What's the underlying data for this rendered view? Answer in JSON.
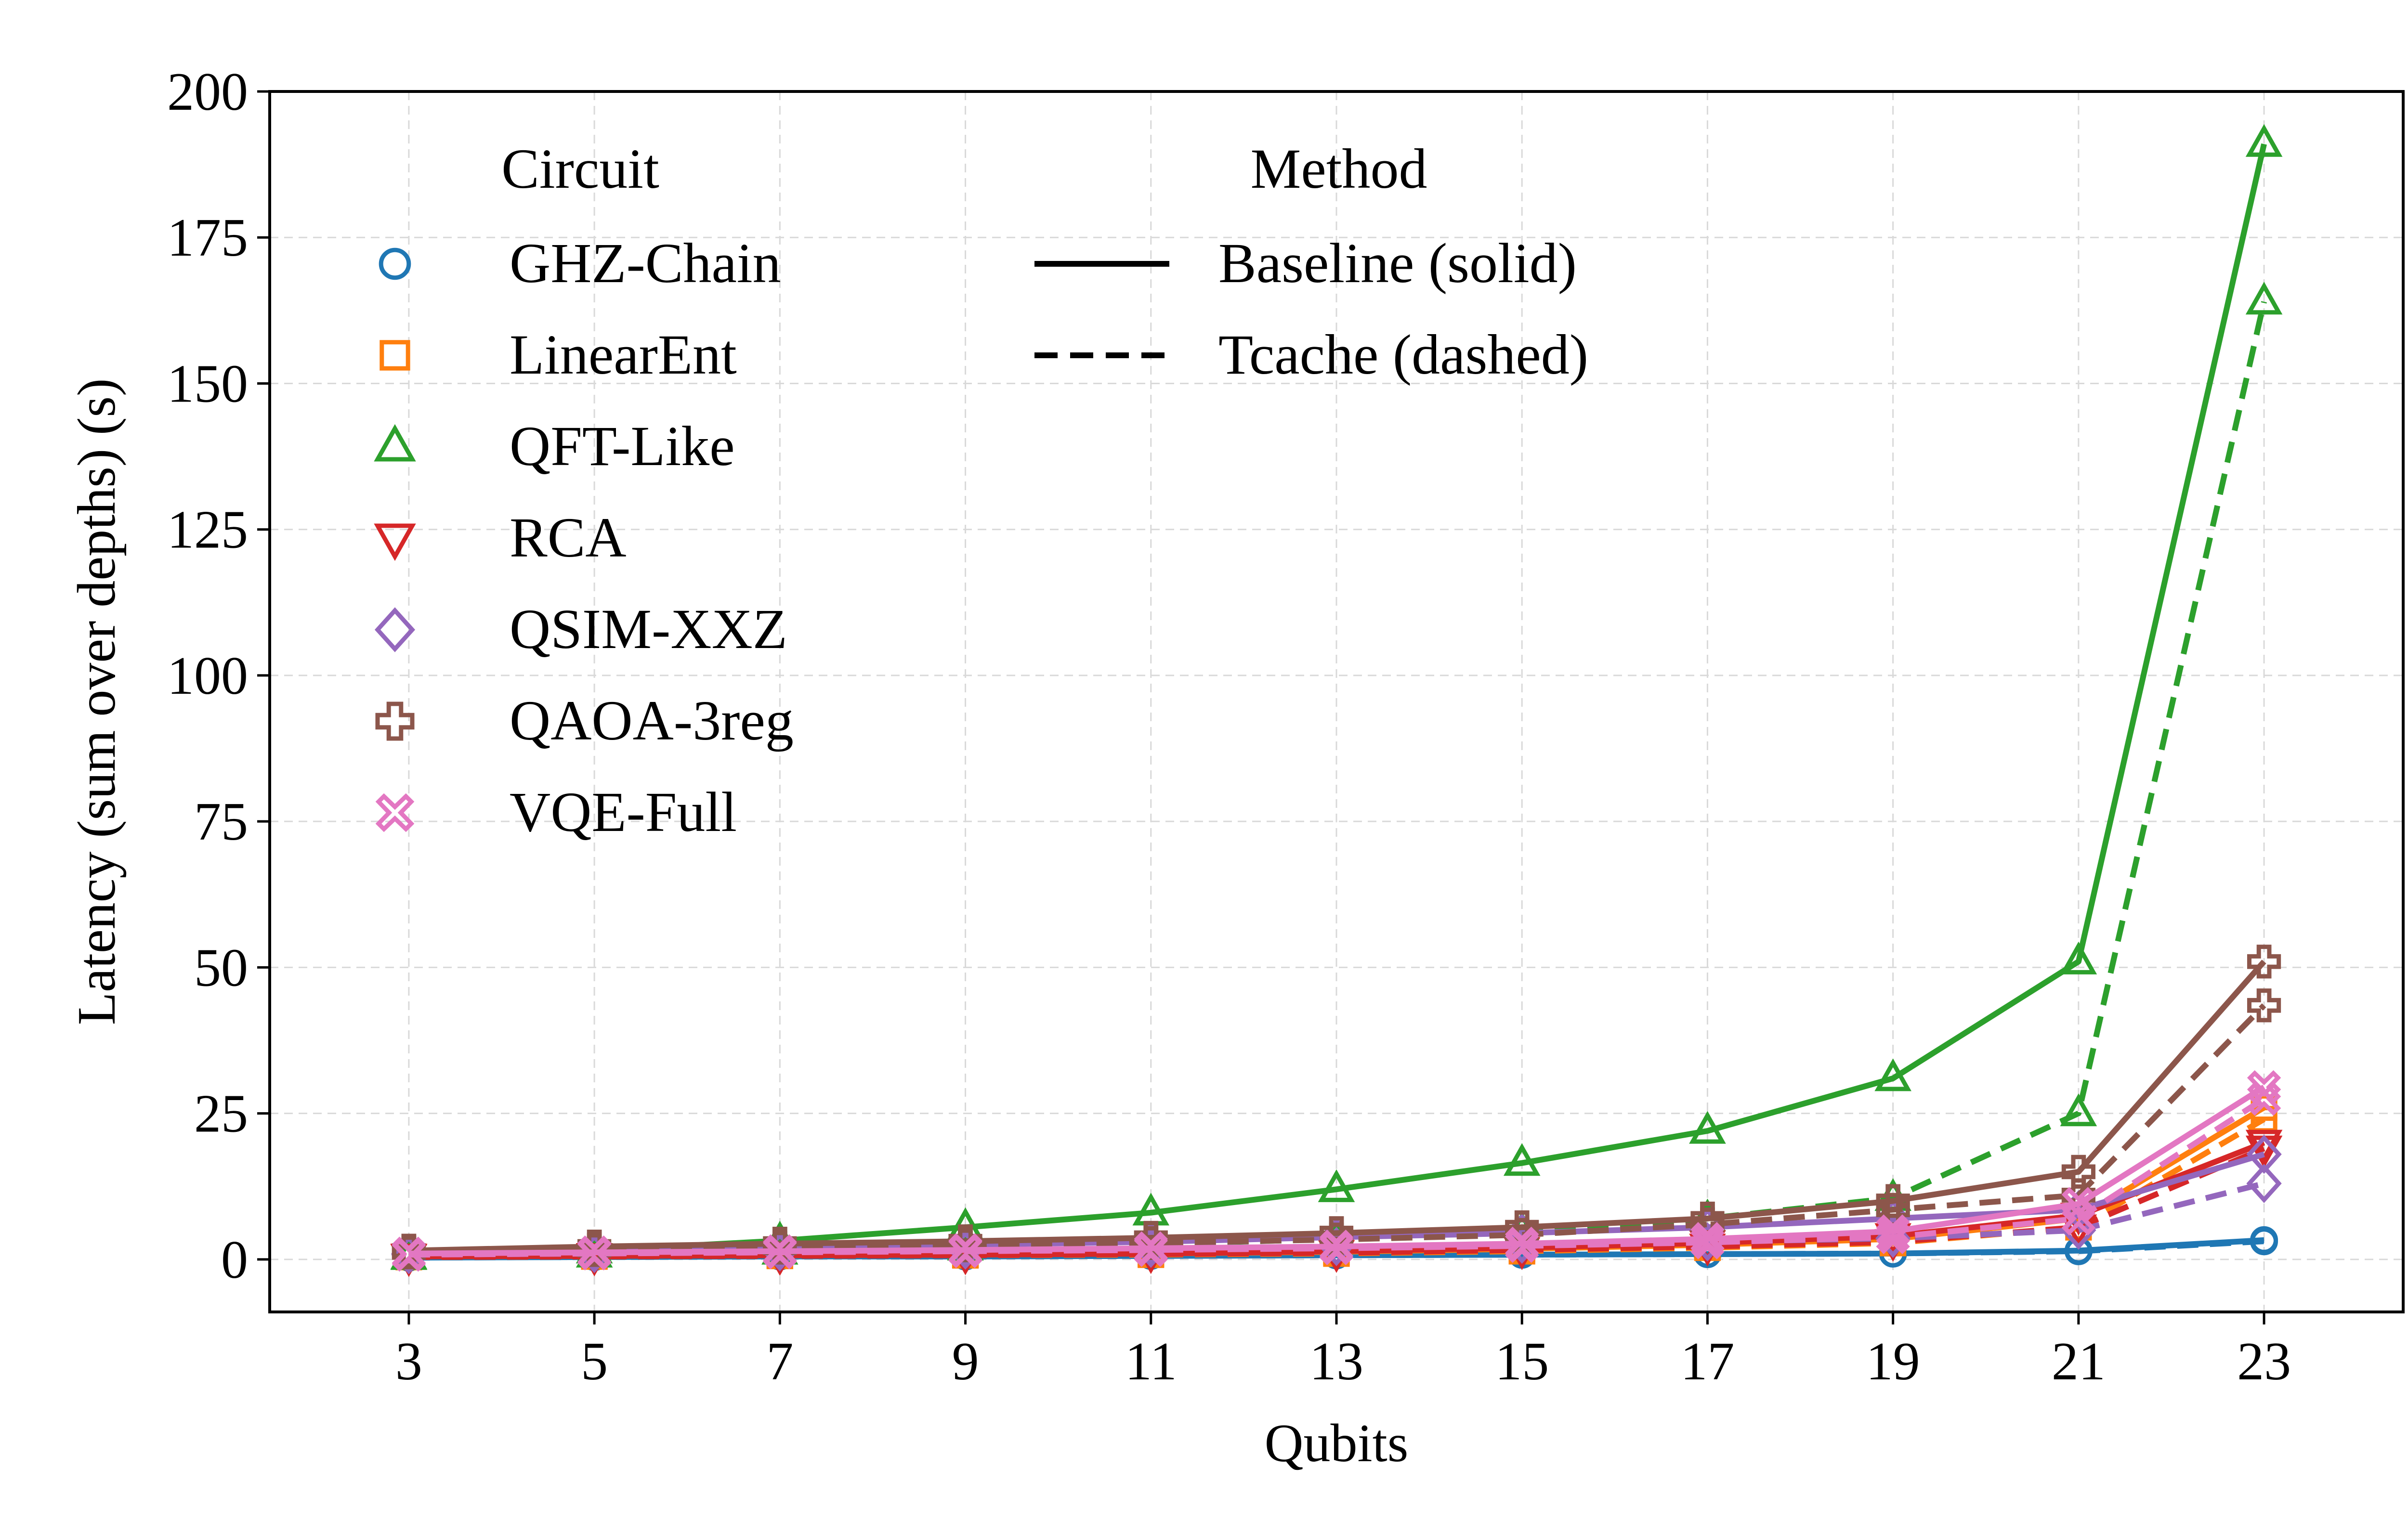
{
  "chart_data": {
    "type": "line",
    "title": "",
    "xlabel": "Qubits",
    "ylabel": "Latency (sum over depths) (s)",
    "x": [
      3,
      5,
      7,
      9,
      11,
      13,
      15,
      17,
      19,
      21,
      23
    ],
    "xlim": [
      1.5,
      24.5
    ],
    "ylim": [
      -9,
      200
    ],
    "yticks": [
      0,
      25,
      50,
      75,
      100,
      125,
      150,
      175,
      200
    ],
    "grid": true,
    "legend_placement": "top-left",
    "legend_circuit_title": "Circuit",
    "legend_method_title": "Method",
    "methods": [
      {
        "name": "Baseline (solid)",
        "dash": "solid"
      },
      {
        "name": "Tcache (dashed)",
        "dash": "dashed"
      }
    ],
    "circuits": [
      {
        "name": "GHZ-Chain",
        "color": "#1f77b4",
        "marker": "circle",
        "baseline": [
          0.3,
          0.4,
          0.5,
          0.5,
          0.6,
          0.7,
          0.8,
          0.9,
          1.0,
          1.5,
          3.3
        ],
        "tcache": [
          0.3,
          0.4,
          0.5,
          0.5,
          0.6,
          0.7,
          0.8,
          0.9,
          1.0,
          1.4,
          3.1
        ]
      },
      {
        "name": "LinearEnt",
        "color": "#ff7f0e",
        "marker": "square",
        "baseline": [
          0.5,
          0.6,
          0.7,
          0.8,
          1.0,
          1.3,
          1.8,
          2.5,
          3.5,
          7.0,
          26
        ],
        "tcache": [
          0.4,
          0.5,
          0.6,
          0.7,
          0.8,
          1.0,
          1.4,
          2.0,
          2.8,
          5.5,
          24
        ]
      },
      {
        "name": "QFT-Like",
        "color": "#2ca02c",
        "marker": "triangle-up",
        "baseline": [
          0.5,
          1.5,
          3.2,
          5.5,
          8.0,
          12.0,
          16.5,
          22.0,
          31.0,
          51.0,
          191
        ],
        "tcache": [
          0.4,
          0.8,
          1.3,
          2.0,
          2.6,
          3.5,
          4.8,
          7.0,
          10.5,
          25.0,
          164
        ]
      },
      {
        "name": "RCA",
        "color": "#d62728",
        "marker": "triangle-down",
        "baseline": [
          0.5,
          0.6,
          0.7,
          0.8,
          1.0,
          1.4,
          2.0,
          2.8,
          4.0,
          7.5,
          20
        ],
        "tcache": [
          0.4,
          0.5,
          0.6,
          0.7,
          0.9,
          1.1,
          1.6,
          2.2,
          3.0,
          5.5,
          19
        ]
      },
      {
        "name": "QSIM-XXZ",
        "color": "#9467bd",
        "marker": "diamond",
        "baseline": [
          1.0,
          1.5,
          2.0,
          2.5,
          3.0,
          3.8,
          4.5,
          5.5,
          7.0,
          8.5,
          18
        ],
        "tcache": [
          0.8,
          1.0,
          1.3,
          1.6,
          1.9,
          2.2,
          2.6,
          3.0,
          3.6,
          5.0,
          13
        ]
      },
      {
        "name": "QAOA-3reg",
        "color": "#8c564b",
        "marker": "plus",
        "baseline": [
          1.5,
          2.2,
          2.7,
          3.1,
          3.7,
          4.5,
          5.5,
          7.0,
          10.0,
          15.0,
          51
        ],
        "tcache": [
          1.2,
          1.6,
          2.0,
          2.4,
          2.8,
          3.4,
          4.2,
          6.0,
          8.5,
          11.0,
          43.5
        ]
      },
      {
        "name": "VQE-Full",
        "color": "#e377c2",
        "marker": "x",
        "baseline": [
          1.0,
          1.2,
          1.4,
          1.6,
          1.9,
          2.2,
          2.7,
          3.5,
          4.8,
          9.5,
          29.5
        ],
        "tcache": [
          0.8,
          1.0,
          1.2,
          1.4,
          1.6,
          1.9,
          2.3,
          2.9,
          3.8,
          7.0,
          27.5
        ]
      }
    ]
  }
}
